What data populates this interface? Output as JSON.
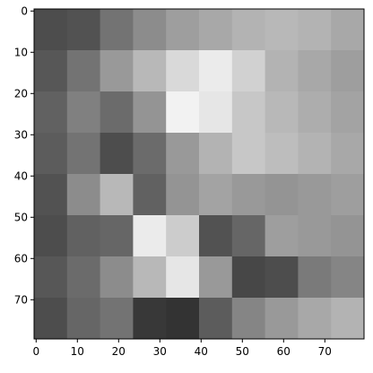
{
  "chart_data": {
    "type": "heatmap",
    "colormap": "gray",
    "x": {
      "range": [
        -0.5,
        79.5
      ],
      "ticks": [
        0,
        10,
        20,
        30,
        40,
        50,
        60,
        70
      ],
      "tick_labels": [
        "0",
        "10",
        "20",
        "30",
        "40",
        "50",
        "60",
        "70"
      ]
    },
    "y": {
      "range": [
        -0.5,
        79.5
      ],
      "inverted": true,
      "ticks": [
        0,
        10,
        20,
        30,
        40,
        50,
        60,
        70
      ],
      "tick_labels": [
        "0",
        "10",
        "20",
        "30",
        "40",
        "50",
        "60",
        "70"
      ]
    },
    "grid": false,
    "values": [
      [
        0.3,
        0.32,
        0.45,
        0.55,
        0.62,
        0.66,
        0.7,
        0.72,
        0.7,
        0.66
      ],
      [
        0.34,
        0.45,
        0.6,
        0.72,
        0.85,
        0.92,
        0.82,
        0.7,
        0.66,
        0.62
      ],
      [
        0.38,
        0.5,
        0.42,
        0.58,
        0.95,
        0.9,
        0.78,
        0.72,
        0.68,
        0.64
      ],
      [
        0.36,
        0.45,
        0.3,
        0.42,
        0.6,
        0.7,
        0.78,
        0.74,
        0.7,
        0.66
      ],
      [
        0.32,
        0.55,
        0.72,
        0.38,
        0.58,
        0.64,
        0.6,
        0.58,
        0.6,
        0.62
      ],
      [
        0.3,
        0.38,
        0.4,
        0.92,
        0.8,
        0.32,
        0.4,
        0.62,
        0.6,
        0.58
      ],
      [
        0.34,
        0.42,
        0.55,
        0.72,
        0.9,
        0.6,
        0.28,
        0.3,
        0.48,
        0.52
      ],
      [
        0.3,
        0.4,
        0.45,
        0.22,
        0.2,
        0.36,
        0.52,
        0.6,
        0.66,
        0.7
      ]
    ]
  }
}
